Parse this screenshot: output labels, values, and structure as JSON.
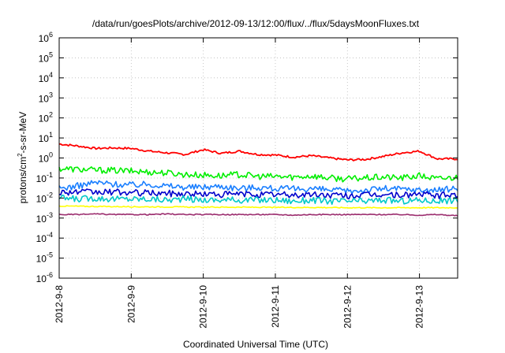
{
  "chart_data": {
    "type": "line",
    "title": "/data/run/goesPlots/archive/2012-09-13/12:00/flux/../flux/5daysMoonFluxes.txt",
    "xlabel": "Coordinated Universal Time (UTC)",
    "ylabel_prefix": "protons/cm",
    "ylabel_sup": "2",
    "ylabel_suffix": "-s-sr-MeV",
    "yscale": "log",
    "ylim": [
      1e-06,
      1000000.0
    ],
    "xlim_days": [
      0,
      5.53
    ],
    "grid": true,
    "legend": "none",
    "x_ticks": [
      {
        "day": 0,
        "label": "2012-9-8"
      },
      {
        "day": 1,
        "label": "2012-9-9"
      },
      {
        "day": 2,
        "label": "2012-9-10"
      },
      {
        "day": 3,
        "label": "2012-9-11"
      },
      {
        "day": 4,
        "label": "2012-9-12"
      },
      {
        "day": 5,
        "label": "2012-9-13"
      }
    ],
    "y_ticks": [
      {
        "value": 1e-06,
        "base": "10",
        "exp": "-6"
      },
      {
        "value": 1e-05,
        "base": "10",
        "exp": "-5"
      },
      {
        "value": 0.0001,
        "base": "10",
        "exp": "-4"
      },
      {
        "value": 0.001,
        "base": "10",
        "exp": "-3"
      },
      {
        "value": 0.01,
        "base": "10",
        "exp": "-2"
      },
      {
        "value": 0.1,
        "base": "10",
        "exp": "-1"
      },
      {
        "value": 1,
        "base": "10",
        "exp": "0"
      },
      {
        "value": 10,
        "base": "10",
        "exp": "1"
      },
      {
        "value": 100,
        "base": "10",
        "exp": "2"
      },
      {
        "value": 1000,
        "base": "10",
        "exp": "3"
      },
      {
        "value": 10000,
        "base": "10",
        "exp": "4"
      },
      {
        "value": 100000,
        "base": "10",
        "exp": "5"
      },
      {
        "value": 1000000,
        "base": "10",
        "exp": "6"
      }
    ],
    "series": [
      {
        "color": "#ff0000",
        "x": [
          0,
          0.25,
          0.5,
          0.75,
          1.0,
          1.25,
          1.5,
          1.75,
          2.0,
          2.25,
          2.5,
          2.75,
          3.0,
          3.25,
          3.5,
          3.75,
          4.0,
          4.25,
          4.5,
          4.75,
          5.0,
          5.25,
          5.53
        ],
        "y": [
          5.0,
          4.0,
          3.0,
          3.2,
          3.0,
          2.2,
          1.8,
          1.5,
          2.6,
          1.7,
          2.2,
          1.5,
          1.4,
          1.1,
          1.3,
          1.0,
          0.8,
          0.85,
          1.2,
          1.8,
          2.2,
          0.9,
          0.9
        ]
      },
      {
        "color": "#00ee00",
        "x": [
          0,
          0.25,
          0.5,
          0.75,
          1.0,
          1.25,
          1.5,
          1.75,
          2.0,
          2.25,
          2.5,
          2.75,
          3.0,
          3.25,
          3.5,
          3.75,
          4.0,
          4.25,
          4.5,
          4.75,
          5.0,
          5.25,
          5.53
        ],
        "y": [
          0.3,
          0.27,
          0.25,
          0.24,
          0.22,
          0.2,
          0.18,
          0.15,
          0.14,
          0.13,
          0.15,
          0.12,
          0.12,
          0.11,
          0.13,
          0.1,
          0.09,
          0.1,
          0.11,
          0.1,
          0.13,
          0.09,
          0.11
        ]
      },
      {
        "color": "#1a7fff",
        "x": [
          0,
          0.25,
          0.5,
          0.75,
          1.0,
          1.25,
          1.5,
          1.75,
          2.0,
          2.25,
          2.5,
          2.75,
          3.0,
          3.25,
          3.5,
          3.75,
          4.0,
          4.25,
          4.5,
          4.75,
          5.0,
          5.25,
          5.53
        ],
        "y": [
          0.03,
          0.04,
          0.06,
          0.05,
          0.045,
          0.05,
          0.04,
          0.035,
          0.035,
          0.04,
          0.03,
          0.035,
          0.03,
          0.028,
          0.03,
          0.025,
          0.022,
          0.025,
          0.03,
          0.028,
          0.025,
          0.025,
          0.03
        ]
      },
      {
        "color": "#0000cc",
        "x": [
          0,
          0.25,
          0.5,
          0.75,
          1.0,
          1.25,
          1.5,
          1.75,
          2.0,
          2.25,
          2.5,
          2.75,
          3.0,
          3.25,
          3.5,
          3.75,
          4.0,
          4.25,
          4.5,
          4.75,
          5.0,
          5.25,
          5.53
        ],
        "y": [
          0.02,
          0.02,
          0.019,
          0.02,
          0.018,
          0.018,
          0.017,
          0.016,
          0.016,
          0.015,
          0.016,
          0.015,
          0.015,
          0.014,
          0.015,
          0.014,
          0.013,
          0.014,
          0.015,
          0.014,
          0.016,
          0.013,
          0.015
        ]
      },
      {
        "color": "#00c8c8",
        "x": [
          0,
          0.25,
          0.5,
          0.75,
          1.0,
          1.25,
          1.5,
          1.75,
          2.0,
          2.25,
          2.5,
          2.75,
          3.0,
          3.25,
          3.5,
          3.75,
          4.0,
          4.25,
          4.5,
          4.75,
          5.0,
          5.25,
          5.53
        ],
        "y": [
          0.01,
          0.009,
          0.01,
          0.009,
          0.009,
          0.009,
          0.008,
          0.009,
          0.008,
          0.008,
          0.008,
          0.008,
          0.008,
          0.007,
          0.008,
          0.007,
          0.007,
          0.007,
          0.008,
          0.007,
          0.008,
          0.007,
          0.008
        ]
      },
      {
        "color": "#ffff00",
        "x": [
          0,
          0.5,
          1.0,
          1.5,
          2.0,
          2.5,
          3.0,
          3.5,
          4.0,
          4.5,
          5.0,
          5.53
        ],
        "y": [
          0.004,
          0.0038,
          0.0037,
          0.0036,
          0.0035,
          0.0035,
          0.0034,
          0.0034,
          0.0033,
          0.0033,
          0.0033,
          0.0033
        ]
      },
      {
        "color": "#9b2d6e",
        "x": [
          0,
          0.25,
          0.5,
          0.75,
          1.0,
          1.25,
          1.5,
          1.75,
          2.0,
          2.25,
          2.5,
          2.75,
          3.0,
          3.25,
          3.5,
          3.75,
          4.0,
          4.25,
          4.5,
          4.75,
          5.0,
          5.25,
          5.53
        ],
        "y": [
          0.0015,
          0.0015,
          0.0016,
          0.0015,
          0.0015,
          0.0015,
          0.0016,
          0.0015,
          0.0015,
          0.0015,
          0.0015,
          0.0015,
          0.0015,
          0.0014,
          0.0015,
          0.0015,
          0.0015,
          0.0015,
          0.0015,
          0.0015,
          0.0014,
          0.0015,
          0.0013
        ]
      }
    ]
  }
}
